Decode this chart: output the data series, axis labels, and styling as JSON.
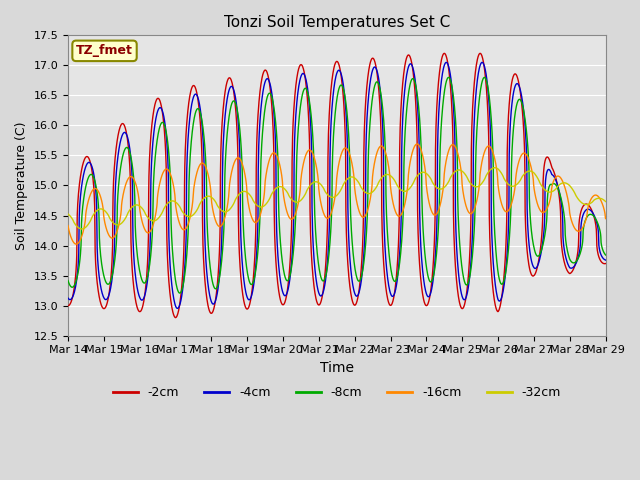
{
  "title": "Tonzi Soil Temperatures Set C",
  "xlabel": "Time",
  "ylabel": "Soil Temperature (C)",
  "ylim": [
    12.5,
    17.5
  ],
  "yticks": [
    12.5,
    13.0,
    13.5,
    14.0,
    14.5,
    15.0,
    15.5,
    16.0,
    16.5,
    17.0,
    17.5
  ],
  "xtick_labels": [
    "Mar 14",
    "Mar 15",
    "Mar 16",
    "Mar 17",
    "Mar 18",
    "Mar 19",
    "Mar 20",
    "Mar 21",
    "Mar 22",
    "Mar 23",
    "Mar 24",
    "Mar 25",
    "Mar 26",
    "Mar 27",
    "Mar 28",
    "Mar 29"
  ],
  "legend_label": "TZ_fmet",
  "legend_entries": [
    "-2cm",
    "-4cm",
    "-8cm",
    "-16cm",
    "-32cm"
  ],
  "line_colors": [
    "#cc0000",
    "#0000cc",
    "#00aa00",
    "#ff8800",
    "#cccc00"
  ],
  "n_days": 15,
  "figsize": [
    6.4,
    4.8
  ],
  "dpi": 100
}
